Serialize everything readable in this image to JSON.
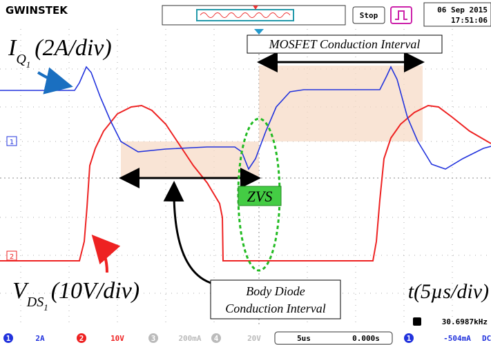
{
  "header": {
    "brand": "GWINSTEK",
    "status": "Stop",
    "date": "06 Sep 2015",
    "time": "17:51:06"
  },
  "annotations": {
    "current": {
      "symbol": "I",
      "sub": "Q",
      "subsub": "1",
      "scale": "(2A/div)"
    },
    "voltage": {
      "symbol": "V",
      "sub": "DS",
      "subsub": "1",
      "scale": "(10V/div)"
    },
    "time": "t(5µs/div)",
    "mosfet": "MOSFET Conduction Interval",
    "body_diode": [
      "Body Diode",
      "Conduction Interval"
    ],
    "zvs": "ZVS"
  },
  "channel_markers": [
    "1",
    "2"
  ],
  "footer": {
    "ch1": "1",
    "ch1_scale": "2A",
    "ch2": "2",
    "ch2_scale": "10V",
    "ch3": "3",
    "ch3_scale": "200mA",
    "ch4": "4",
    "ch4_scale": "20V",
    "timebase": "5us",
    "offset": "0.000s",
    "trig_ch": "1",
    "trig_level": "-504mA",
    "coupling": "DC",
    "freq": "30.6987kHz"
  }
}
